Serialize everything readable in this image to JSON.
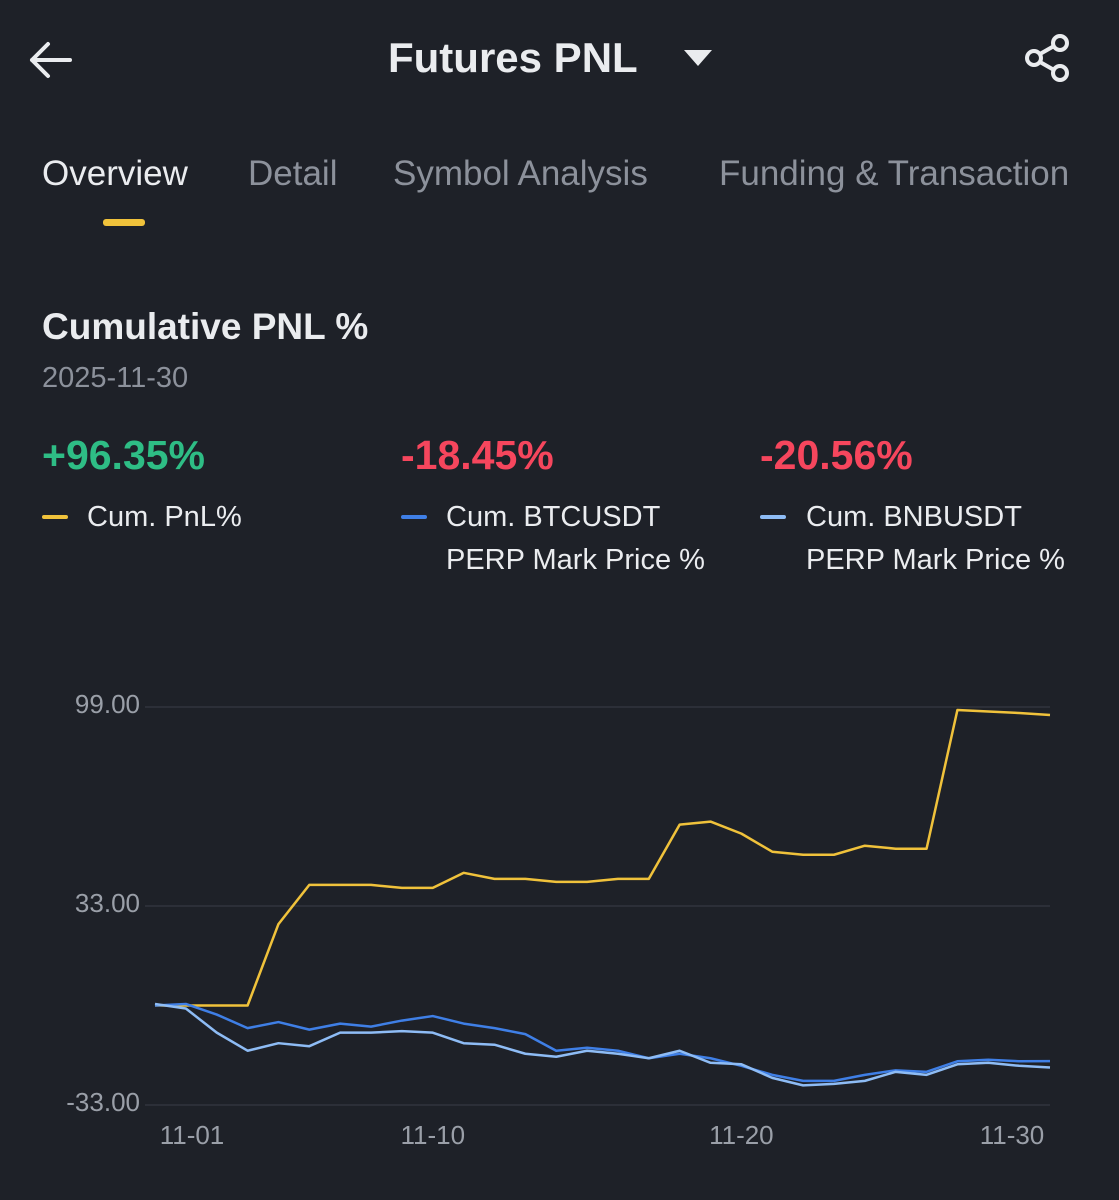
{
  "header": {
    "title": "Futures PNL"
  },
  "tabs": [
    "Overview",
    "Detail",
    "Symbol Analysis",
    "Funding & Transaction"
  ],
  "section": {
    "title": "Cumulative PNL %",
    "date": "2025-11-30"
  },
  "summary": [
    "+96.35%",
    "-18.45%",
    "-20.56%"
  ],
  "chart_data": {
    "type": "line",
    "categories": [
      "11-01",
      null,
      null,
      null,
      null,
      null,
      null,
      null,
      null,
      "11-10",
      null,
      null,
      null,
      null,
      null,
      null,
      null,
      null,
      null,
      "11-20",
      null,
      null,
      null,
      null,
      null,
      null,
      null,
      null,
      null,
      "11-30"
    ],
    "series": [
      {
        "name": "Cum. PnL%",
        "color": "#f0c23b",
        "values": [
          0,
          0,
          0,
          0,
          27,
          40,
          40,
          40,
          39,
          39,
          44,
          42,
          42,
          41,
          41,
          42,
          42,
          60,
          61,
          57,
          51,
          50,
          50,
          53,
          52,
          52,
          98,
          97.5,
          97,
          96.35
        ]
      },
      {
        "name": "Cum. BTCUSDT PERP Mark Price %",
        "color": "#3f7fe6",
        "values": [
          0,
          0.5,
          -3,
          -7.5,
          -5.5,
          -8,
          -6,
          -7,
          -5,
          -3.5,
          -6,
          -7.5,
          -9.5,
          -15,
          -14,
          -15,
          -17.5,
          -16,
          -17.5,
          -20,
          -23,
          -25,
          -25,
          -23,
          -21.5,
          -22,
          -18.5,
          -18,
          -18.5,
          -18.45
        ]
      },
      {
        "name": "Cum. BNBUSDT PERP Mark Price %",
        "color": "#8ebcf5",
        "values": [
          0.5,
          -1,
          -9,
          -15,
          -12.5,
          -13.5,
          -9,
          -9,
          -8.5,
          -9,
          -12.5,
          -13,
          -16,
          -17,
          -15,
          -16,
          -17.5,
          -15,
          -19,
          -19.5,
          -24,
          -26.5,
          -26,
          -25,
          -22,
          -23,
          -19.5,
          -19,
          -20,
          -20.56
        ]
      }
    ],
    "ylim": [
      -33,
      99
    ],
    "yticks": [
      {
        "value": -33,
        "label": "-33.00"
      },
      {
        "value": 33,
        "label": "33.00"
      },
      {
        "value": 99,
        "label": "99.00"
      }
    ],
    "grid": true
  }
}
